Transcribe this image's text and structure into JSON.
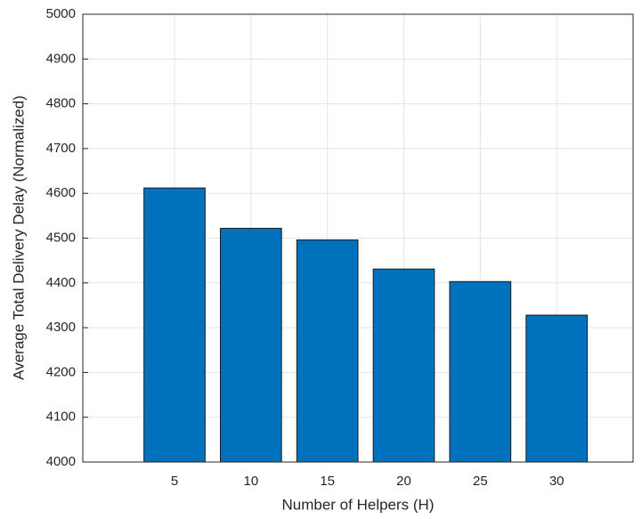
{
  "chart_data": {
    "type": "bar",
    "x_label": "Number of Helpers (H)",
    "y_label": "Average Total Delivery Delay (Normalized)",
    "x": [
      5,
      10,
      15,
      20,
      25,
      30
    ],
    "values": [
      4612,
      4522,
      4496,
      4431,
      4403,
      4328
    ],
    "color": "#0072bd",
    "xlim": [
      -1,
      35
    ],
    "xticks": [
      5,
      10,
      15,
      20,
      25,
      30
    ],
    "ylim": [
      4000,
      5000
    ],
    "yticks": [
      4000,
      4100,
      4200,
      4300,
      4400,
      4500,
      4600,
      4700,
      4800,
      4900,
      5000
    ],
    "grid": true
  }
}
